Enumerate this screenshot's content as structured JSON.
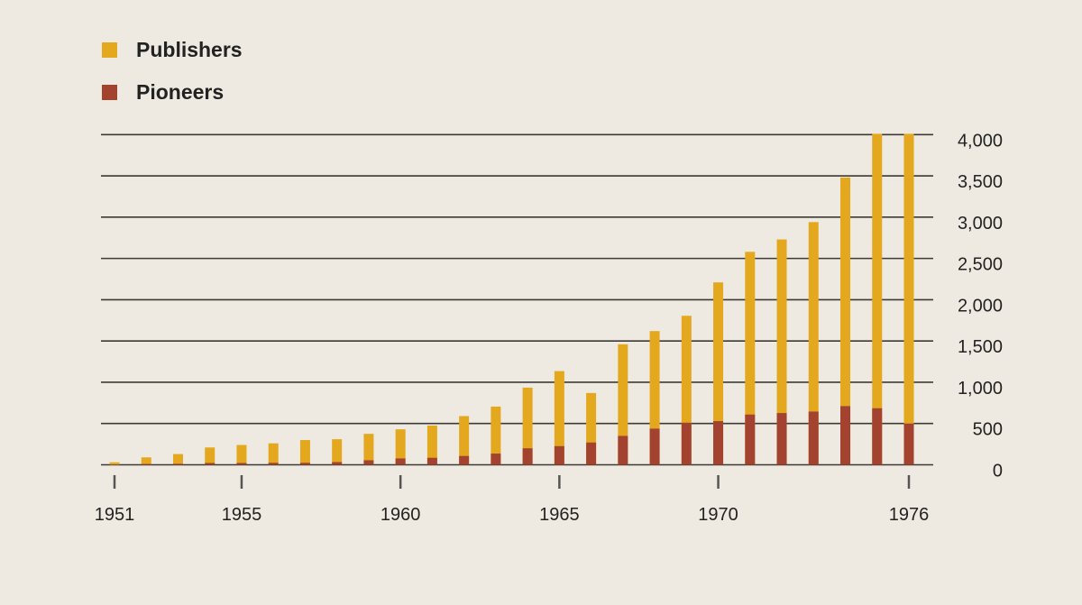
{
  "chart_data": {
    "type": "bar",
    "stacked": false,
    "overlaid": true,
    "categories": [
      1951,
      1952,
      1953,
      1954,
      1955,
      1956,
      1957,
      1958,
      1959,
      1960,
      1961,
      1962,
      1963,
      1964,
      1965,
      1966,
      1967,
      1968,
      1969,
      1970,
      1971,
      1972,
      1973,
      1974,
      1975,
      1976
    ],
    "series": [
      {
        "name": "Publishers",
        "color": "#e3a81e",
        "values": [
          30,
          90,
          130,
          210,
          240,
          260,
          300,
          310,
          375,
          430,
          475,
          590,
          705,
          935,
          1135,
          870,
          1460,
          1620,
          1805,
          2210,
          2580,
          2730,
          2940,
          3480,
          4010,
          4010
        ]
      },
      {
        "name": "Pioneers",
        "color": "#a3432f",
        "values": [
          3,
          10,
          12,
          22,
          22,
          24,
          24,
          33,
          55,
          77,
          85,
          107,
          136,
          200,
          226,
          270,
          350,
          438,
          510,
          529,
          609,
          627,
          645,
          711,
          685,
          500
        ]
      }
    ],
    "x_tick_labels": [
      "1951",
      "1955",
      "1960",
      "1965",
      "1970",
      "1976"
    ],
    "y_tick_labels": [
      "0",
      "500",
      "1,000",
      "1,500",
      "2,000",
      "2,500",
      "3,000",
      "3,500",
      "4,000"
    ],
    "ylim": [
      0,
      4000
    ],
    "y_axis_side": "right",
    "grid": true,
    "legend_placement": "top-left"
  }
}
